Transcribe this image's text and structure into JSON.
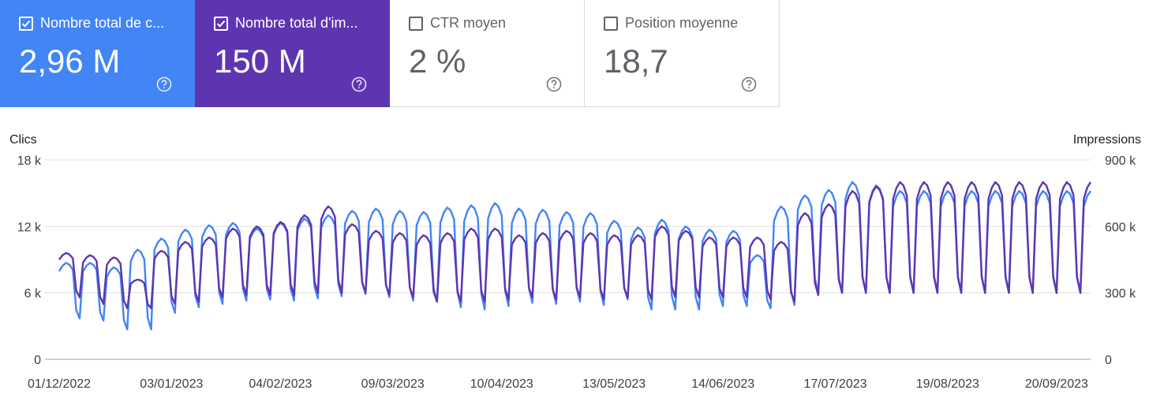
{
  "metrics": [
    {
      "label": "Nombre total de c...",
      "value": "2,96 M",
      "checked": true,
      "color": "#4285f4",
      "icon": "help-circle-icon"
    },
    {
      "label": "Nombre total d'im...",
      "value": "150 M",
      "checked": true,
      "color": "#5e35b1",
      "icon": "help-circle-icon"
    },
    {
      "label": "CTR moyen",
      "value": "2 %",
      "checked": false,
      "color": "#ffffff",
      "icon": "help-circle-icon"
    },
    {
      "label": "Position moyenne",
      "value": "18,7",
      "checked": false,
      "color": "#ffffff",
      "icon": "help-circle-icon"
    }
  ],
  "chart_data": {
    "type": "line",
    "ylabel_left": "Clics",
    "ylabel_right": "Impressions",
    "ylim_left": [
      0,
      18000
    ],
    "ylim_right": [
      0,
      900000
    ],
    "yticks_left": [
      "0",
      "6 k",
      "12 k",
      "18 k"
    ],
    "yticks_right": [
      "0",
      "300 k",
      "600 k",
      "900 k"
    ],
    "xticks": [
      "01/12/2022",
      "03/01/2023",
      "04/02/2023",
      "09/03/2023",
      "10/04/2023",
      "13/05/2023",
      "14/06/2023",
      "17/07/2023",
      "19/08/2023",
      "20/09/2023"
    ],
    "grid": true,
    "x_start": "01/12/2022",
    "x_end": "30/09/2023",
    "series": [
      {
        "name": "Nombre total de clics",
        "axis": "left",
        "color": "#4285f4",
        "weekly_weekday_peak": [
          8700,
          8700,
          8300,
          9900,
          10900,
          11700,
          12100,
          12300,
          11800,
          12300,
          12700,
          13000,
          13400,
          13600,
          13400,
          13300,
          13700,
          13900,
          14100,
          13600,
          13500,
          13300,
          13200,
          12500,
          11900,
          12600,
          12000,
          11700,
          11600,
          9400,
          13800,
          14800,
          15300,
          16000,
          15700,
          15200
        ],
        "weekly_weekend_low": [
          3700,
          3500,
          2700,
          2700,
          4200,
          4700,
          5000,
          5300,
          5400,
          5300,
          5500,
          5700,
          5900,
          5600,
          5300,
          5200,
          4700,
          4500,
          4800,
          5100,
          5000,
          5200,
          4900,
          5400,
          4500,
          4500,
          4500,
          4800,
          4800,
          4600,
          4900,
          6000,
          6000,
          6000,
          6000,
          6000
        ]
      },
      {
        "name": "Nombre total d'impressions",
        "axis": "right",
        "color": "#5e35b1",
        "weekly_weekday_peak": [
          480000,
          470000,
          460000,
          360000,
          490000,
          530000,
          550000,
          590000,
          600000,
          620000,
          650000,
          690000,
          610000,
          580000,
          570000,
          560000,
          570000,
          590000,
          590000,
          560000,
          570000,
          580000,
          570000,
          560000,
          560000,
          600000,
          580000,
          550000,
          550000,
          550000,
          530000,
          660000,
          700000,
          760000,
          780000,
          800000
        ],
        "weekly_weekend_low": [
          280000,
          250000,
          230000,
          230000,
          250000,
          260000,
          280000,
          290000,
          290000,
          290000,
          300000,
          300000,
          300000,
          290000,
          280000,
          260000,
          260000,
          260000,
          270000,
          280000,
          270000,
          280000,
          270000,
          280000,
          270000,
          280000,
          280000,
          280000,
          280000,
          270000,
          260000,
          290000,
          300000,
          300000,
          300000,
          300000
        ]
      }
    ]
  }
}
